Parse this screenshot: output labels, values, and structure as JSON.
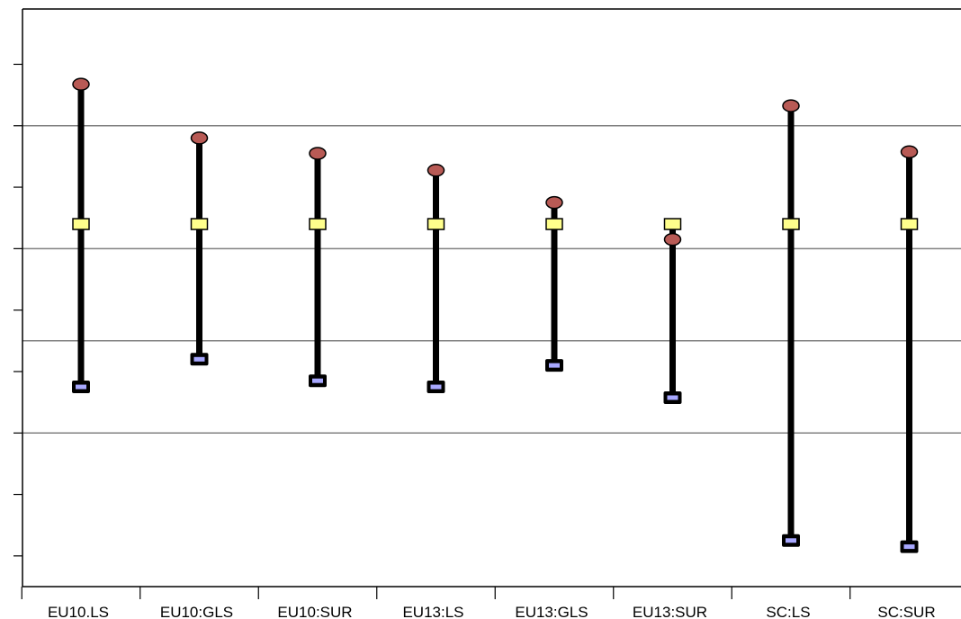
{
  "chart_data": {
    "type": "high-low",
    "categories": [
      "EU10.LS",
      "EU10:GLS",
      "EU10:SUR",
      "EU13:LS",
      "EU13:GLS",
      "EU13:SUR",
      "SC:LS",
      "SC:SUR"
    ],
    "series": [
      {
        "marker": "ellipse",
        "color": "#b85a55",
        "values": [
          -3.35,
          -1.6,
          -1.1,
          -0.55,
          0.5,
          1.7,
          -2.65,
          -1.15
        ]
      },
      {
        "marker": "square",
        "color": "#ffff8c",
        "values": [
          1.2,
          1.2,
          1.2,
          1.2,
          1.2,
          1.2,
          1.2,
          1.2
        ]
      },
      {
        "marker": "square",
        "color": "#a8a8ff",
        "values": [
          6.5,
          5.6,
          6.3,
          6.5,
          5.8,
          6.85,
          11.5,
          11.7
        ]
      }
    ],
    "yticks": [
      -4,
      -2,
      0,
      2,
      4,
      6,
      8,
      10,
      12
    ],
    "ylim": [
      -5.8,
      13
    ],
    "gridlines": [
      -2,
      2,
      5,
      8
    ],
    "colors": {
      "bar": "#000000",
      "grid": "#808080",
      "axis": "#000000"
    }
  }
}
